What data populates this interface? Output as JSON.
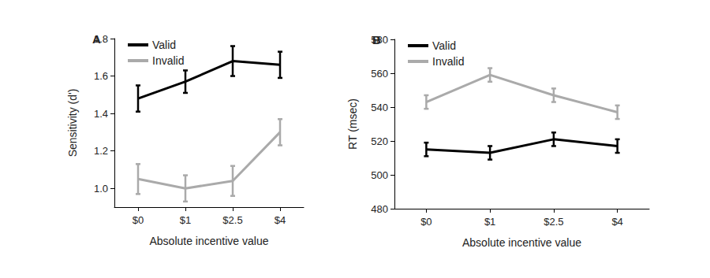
{
  "chart_data": [
    {
      "type": "line",
      "title": "A",
      "categories": [
        "$0",
        "$1",
        "$2.5",
        "$4"
      ],
      "x_label": "Absolute incentive value",
      "y_label": "Sensitivity (d')",
      "ylim": [
        0.9,
        1.8
      ],
      "yticks": [
        {
          "value": 1,
          "label": "1.0"
        },
        1.2,
        1.4,
        1.6,
        1.8
      ],
      "grid": false,
      "legend": "upper left",
      "series": [
        {
          "name": "Valid",
          "color": "#000000",
          "values": [
            1.48,
            1.57,
            1.68,
            1.66
          ],
          "errors": [
            0.07,
            0.06,
            0.08,
            0.07
          ]
        },
        {
          "name": "Invalid",
          "color": "#aaaaaa",
          "values": [
            1.05,
            1.0,
            1.04,
            1.3
          ],
          "errors": [
            0.08,
            0.07,
            0.08,
            0.07
          ]
        }
      ]
    },
    {
      "type": "line",
      "title": "B",
      "categories": [
        "$0",
        "$1",
        "$2.5",
        "$4"
      ],
      "x_label": "Absolute incentive value",
      "y_label": "RT (msec)",
      "ylim": [
        480,
        580
      ],
      "yticks": [
        480,
        500,
        520,
        540,
        560,
        580
      ],
      "grid": false,
      "legend": "upper left",
      "series": [
        {
          "name": "Valid",
          "color": "#000000",
          "values": [
            515,
            513,
            521,
            517
          ],
          "errors": [
            4,
            4,
            4,
            4
          ]
        },
        {
          "name": "Invalid",
          "color": "#aaaaaa",
          "values": [
            543,
            559,
            547,
            537
          ],
          "errors": [
            4,
            4,
            4,
            4
          ]
        }
      ]
    }
  ]
}
